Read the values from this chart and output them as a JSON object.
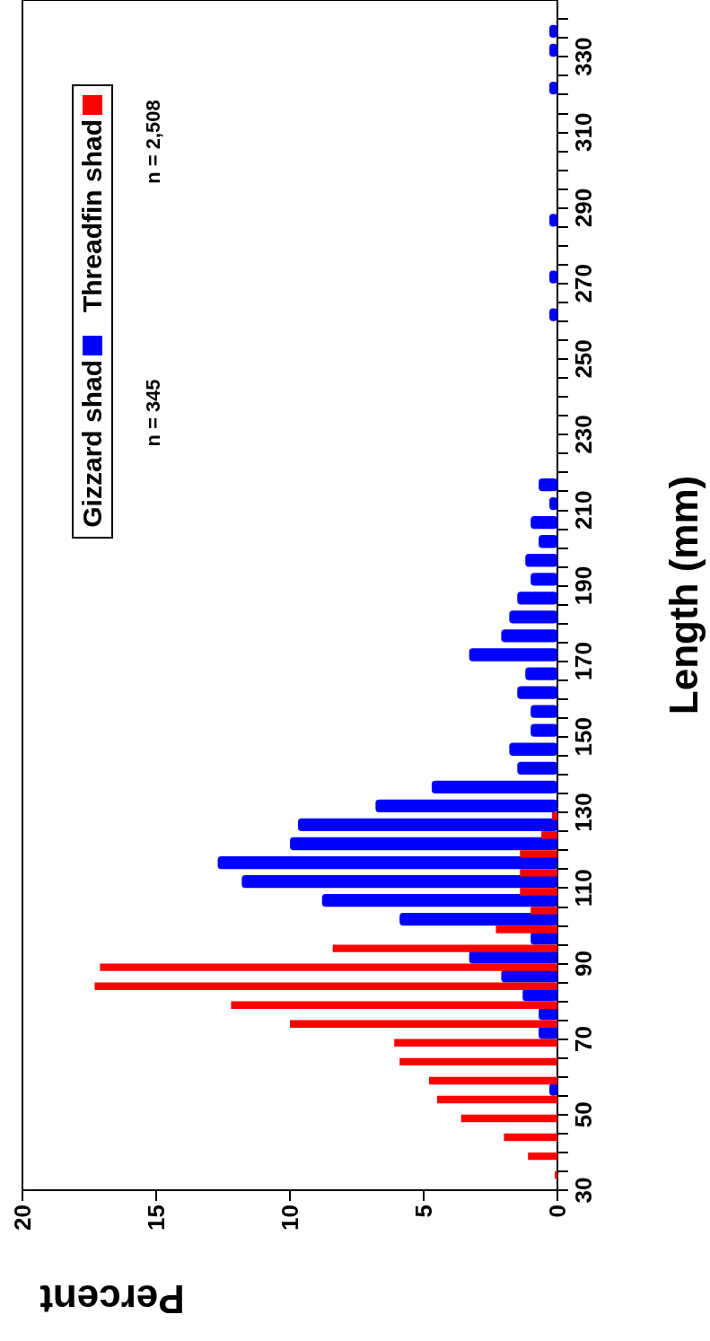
{
  "chart_data": {
    "type": "histogram",
    "orientation": "horizontal",
    "xlabel": "Percent",
    "ylabel": "Length (mm)",
    "bins": [
      30,
      35,
      40,
      45,
      50,
      55,
      60,
      65,
      70,
      75,
      80,
      85,
      90,
      95,
      100,
      105,
      110,
      115,
      120,
      125,
      130,
      135,
      140,
      145,
      150,
      155,
      160,
      165,
      170,
      175,
      180,
      185,
      190,
      195,
      200,
      205,
      210,
      215,
      220,
      225,
      230,
      235,
      240,
      245,
      250,
      255,
      260,
      265,
      270,
      275,
      280,
      285,
      290,
      295,
      300,
      305,
      310,
      315,
      320,
      325,
      330,
      335,
      340
    ],
    "series": [
      {
        "name": "Gizzard shad",
        "color": "#0000ff",
        "values": [
          0,
          0,
          0,
          0,
          0,
          0.3,
          0,
          0,
          0.7,
          0.7,
          1.3,
          2.1,
          3.3,
          1.0,
          5.9,
          8.8,
          11.8,
          12.7,
          10.0,
          9.7,
          6.8,
          4.7,
          1.5,
          1.8,
          1.0,
          1.0,
          1.5,
          1.2,
          3.3,
          2.1,
          1.8,
          1.5,
          1.0,
          1.2,
          0.7,
          1.0,
          0.3,
          0.7,
          0,
          0,
          0,
          0,
          0,
          0,
          0,
          0,
          0.3,
          0,
          0.3,
          0,
          0,
          0.3,
          0,
          0,
          0,
          0,
          0,
          0,
          0.3,
          0,
          0.3,
          0.3
        ]
      },
      {
        "name": "Threadfin shad",
        "color": "#ff0000",
        "values": [
          0.1,
          1.1,
          2.0,
          3.6,
          4.5,
          4.8,
          5.9,
          6.1,
          10.0,
          12.2,
          17.3,
          17.1,
          8.4,
          2.3,
          1.0,
          1.4,
          1.4,
          1.4,
          0.6,
          0.2,
          0,
          0,
          0,
          0,
          0,
          0,
          0,
          0,
          0,
          0,
          0,
          0,
          0,
          0,
          0,
          0,
          0,
          0,
          0,
          0,
          0,
          0,
          0,
          0,
          0,
          0,
          0,
          0,
          0,
          0,
          0,
          0,
          0,
          0,
          0,
          0,
          0,
          0,
          0,
          0,
          0,
          0
        ]
      }
    ],
    "xlim": [
      20,
      0
    ],
    "xticks": [
      20,
      15,
      10,
      5,
      0
    ],
    "ylim": [
      30,
      345
    ],
    "yticks": [
      30,
      {
        "value": 35,
        "label": null
      },
      {
        "value": 40,
        "label": null
      },
      {
        "value": 45,
        "label": null
      },
      50,
      {
        "value": 55,
        "label": null
      },
      {
        "value": 60,
        "label": null
      },
      {
        "value": 65,
        "label": null
      },
      70,
      {
        "value": 75,
        "label": null
      },
      {
        "value": 80,
        "label": null
      },
      {
        "value": 85,
        "label": null
      },
      90,
      {
        "value": 95,
        "label": null
      },
      {
        "value": 100,
        "label": null
      },
      {
        "value": 105,
        "label": null
      },
      110,
      {
        "value": 115,
        "label": null
      },
      {
        "value": 120,
        "label": null
      },
      {
        "value": 125,
        "label": null
      },
      130,
      {
        "value": 135,
        "label": null
      },
      {
        "value": 140,
        "label": null
      },
      {
        "value": 145,
        "label": null
      },
      150,
      {
        "value": 155,
        "label": null
      },
      {
        "value": 160,
        "label": null
      },
      {
        "value": 165,
        "label": null
      },
      170,
      {
        "value": 175,
        "label": null
      },
      {
        "value": 180,
        "label": null
      },
      {
        "value": 185,
        "label": null
      },
      190,
      {
        "value": 195,
        "label": null
      },
      {
        "value": 200,
        "label": null
      },
      {
        "value": 205,
        "label": null
      },
      210,
      {
        "value": 215,
        "label": null
      },
      {
        "value": 220,
        "label": null
      },
      {
        "value": 225,
        "label": null
      },
      230,
      {
        "value": 235,
        "label": null
      },
      {
        "value": 240,
        "label": null
      },
      {
        "value": 245,
        "label": null
      },
      250,
      {
        "value": 255,
        "label": null
      },
      {
        "value": 260,
        "label": null
      },
      {
        "value": 265,
        "label": null
      },
      270,
      {
        "value": 275,
        "label": null
      },
      {
        "value": 280,
        "label": null
      },
      {
        "value": 285,
        "label": null
      },
      290,
      {
        "value": 295,
        "label": null
      },
      {
        "value": 300,
        "label": null
      },
      {
        "value": 305,
        "label": null
      },
      310,
      {
        "value": 315,
        "label": null
      },
      {
        "value": 320,
        "label": null
      },
      {
        "value": 325,
        "label": null
      },
      330,
      {
        "value": 335,
        "label": null
      },
      {
        "value": 340,
        "label": null
      }
    ],
    "annotations": [
      "n = 345",
      "n = 2,508"
    ],
    "legend": "top left"
  }
}
